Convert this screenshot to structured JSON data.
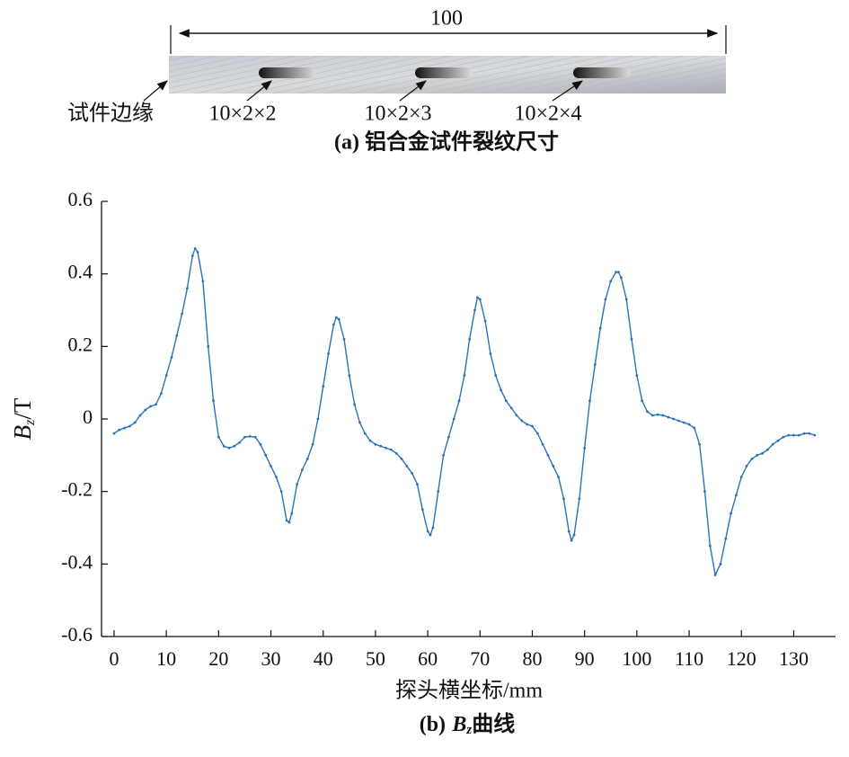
{
  "specimen": {
    "length_label": "100",
    "edge_label": "试件边缘",
    "crack_labels": [
      "10×2×2",
      "10×2×3",
      "10×2×4"
    ],
    "caption": "(a) 铝合金试件裂纹尺寸"
  },
  "chart_data": {
    "type": "line",
    "ylabel": {
      "symbol": "B",
      "subscript": "z",
      "unit": "/T"
    },
    "xlabel": "探头横坐标/mm",
    "caption": {
      "prefix": "(b)",
      "symbol": "B",
      "subscript": "z",
      "text": "曲线"
    },
    "xlim": [
      -2.4,
      138
    ],
    "ylim": [
      -0.6,
      0.6
    ],
    "xticks": [
      0,
      10,
      20,
      30,
      40,
      50,
      60,
      70,
      80,
      90,
      100,
      110,
      120,
      130
    ],
    "yticks": [
      -0.6,
      -0.4,
      -0.2,
      {
        "value": 0,
        "label": "0"
      },
      0.2,
      0.4,
      0.6
    ],
    "x": [
      0,
      1,
      2,
      3,
      4,
      5,
      6,
      7,
      8,
      9,
      10,
      11,
      12,
      13,
      14,
      15,
      15.5,
      16,
      17,
      18,
      19,
      20,
      21,
      22,
      23,
      24,
      25,
      26,
      27,
      28,
      29,
      30,
      31,
      32,
      33,
      33.5,
      34,
      35,
      36,
      37,
      38,
      39,
      40,
      41,
      42,
      42.5,
      43,
      44,
      45,
      46,
      47,
      48,
      49,
      50,
      51,
      52,
      53,
      54,
      55,
      56,
      57,
      58,
      59,
      60,
      60.5,
      61,
      62,
      63,
      64,
      65,
      66,
      67,
      68,
      69,
      69.5,
      70,
      71,
      72,
      73,
      74,
      75,
      76,
      77,
      78,
      79,
      80,
      81,
      82,
      83,
      84,
      85,
      86,
      87,
      87.5,
      88,
      89,
      90,
      91,
      92,
      93,
      94,
      95,
      96,
      96.5,
      97,
      98,
      99,
      100,
      101,
      102,
      103,
      104,
      105,
      106,
      107,
      108,
      109,
      110,
      111,
      112,
      113,
      114,
      115,
      116,
      117,
      118,
      119,
      120,
      121,
      122,
      123,
      124,
      125,
      126,
      127,
      128,
      129,
      130,
      131,
      132,
      133,
      134
    ],
    "series": [
      {
        "name": "Bz",
        "color": "#2b73b8",
        "values": [
          -0.04,
          -0.03,
          -0.025,
          -0.02,
          -0.01,
          0.01,
          0.025,
          0.035,
          0.04,
          0.07,
          0.12,
          0.17,
          0.23,
          0.29,
          0.36,
          0.45,
          0.47,
          0.46,
          0.38,
          0.2,
          0.05,
          -0.05,
          -0.075,
          -0.08,
          -0.075,
          -0.065,
          -0.05,
          -0.048,
          -0.05,
          -0.07,
          -0.1,
          -0.13,
          -0.16,
          -0.2,
          -0.28,
          -0.285,
          -0.26,
          -0.18,
          -0.14,
          -0.11,
          -0.07,
          0.0,
          0.09,
          0.18,
          0.26,
          0.28,
          0.275,
          0.22,
          0.12,
          0.04,
          -0.01,
          -0.04,
          -0.06,
          -0.07,
          -0.075,
          -0.08,
          -0.085,
          -0.095,
          -0.11,
          -0.13,
          -0.15,
          -0.18,
          -0.25,
          -0.31,
          -0.32,
          -0.3,
          -0.2,
          -0.1,
          -0.05,
          0.0,
          0.05,
          0.12,
          0.22,
          0.3,
          0.335,
          0.33,
          0.27,
          0.18,
          0.12,
          0.08,
          0.05,
          0.03,
          0.01,
          -0.005,
          -0.015,
          -0.02,
          -0.04,
          -0.07,
          -0.1,
          -0.13,
          -0.16,
          -0.22,
          -0.31,
          -0.335,
          -0.32,
          -0.22,
          -0.08,
          0.05,
          0.15,
          0.25,
          0.33,
          0.38,
          0.405,
          0.405,
          0.39,
          0.33,
          0.22,
          0.12,
          0.05,
          0.02,
          0.01,
          0.012,
          0.01,
          0.005,
          0.0,
          -0.005,
          -0.01,
          -0.015,
          -0.025,
          -0.07,
          -0.2,
          -0.35,
          -0.43,
          -0.4,
          -0.33,
          -0.26,
          -0.21,
          -0.16,
          -0.13,
          -0.11,
          -0.1,
          -0.095,
          -0.085,
          -0.07,
          -0.06,
          -0.05,
          -0.045,
          -0.045,
          -0.045,
          -0.04,
          -0.04,
          -0.045
        ]
      }
    ]
  }
}
